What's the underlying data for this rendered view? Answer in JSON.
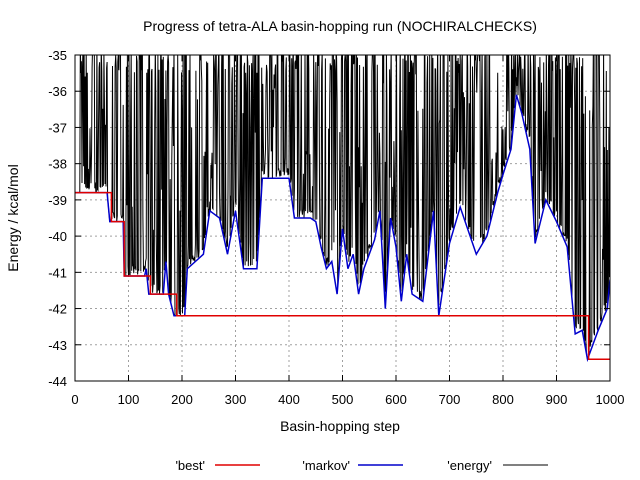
{
  "chart_data": {
    "type": "line",
    "title": "Progress of tetra-ALA basin-hopping run (NOCHIRALCHECKS)",
    "xlabel": "Basin-hopping step",
    "ylabel": "Energy / kcal/mol",
    "xlim": [
      0,
      1000
    ],
    "ylim": [
      -44,
      -35
    ],
    "x_ticks": [
      0,
      100,
      200,
      300,
      400,
      500,
      600,
      700,
      800,
      900,
      1000
    ],
    "y_ticks": [
      -44,
      -43,
      -42,
      -41,
      -40,
      -39,
      -38,
      -37,
      -36,
      -35
    ],
    "grid": true,
    "legend_placement": "bottom",
    "series": [
      {
        "name": "'best'",
        "color": "#e00000",
        "points": [
          [
            0,
            -38.8
          ],
          [
            62,
            -38.8
          ],
          [
            68,
            -39.6
          ],
          [
            90,
            -39.6
          ],
          [
            92,
            -41.1
          ],
          [
            138,
            -41.1
          ],
          [
            141,
            -41.6
          ],
          [
            180,
            -41.6
          ],
          [
            190,
            -42.2
          ],
          [
            930,
            -42.2
          ],
          [
            960,
            -43.4
          ],
          [
            1000,
            -43.4
          ]
        ]
      },
      {
        "name": "'markov'",
        "color": "#0000cc",
        "points": [
          [
            0,
            -38.8
          ],
          [
            60,
            -38.8
          ],
          [
            65,
            -39.6
          ],
          [
            90,
            -39.6
          ],
          [
            92,
            -41.1
          ],
          [
            130,
            -41.1
          ],
          [
            133,
            -40.9
          ],
          [
            138,
            -41.6
          ],
          [
            165,
            -41.6
          ],
          [
            170,
            -40.7
          ],
          [
            175,
            -41.6
          ],
          [
            185,
            -42.2
          ],
          [
            205,
            -42.2
          ],
          [
            210,
            -40.9
          ],
          [
            225,
            -40.7
          ],
          [
            240,
            -40.5
          ],
          [
            252,
            -39.3
          ],
          [
            270,
            -39.5
          ],
          [
            285,
            -40.5
          ],
          [
            300,
            -39.3
          ],
          [
            315,
            -40.9
          ],
          [
            340,
            -40.9
          ],
          [
            350,
            -38.4
          ],
          [
            375,
            -38.4
          ],
          [
            400,
            -38.4
          ],
          [
            410,
            -39.5
          ],
          [
            440,
            -39.5
          ],
          [
            450,
            -39.6
          ],
          [
            460,
            -40.3
          ],
          [
            470,
            -40.9
          ],
          [
            480,
            -40.7
          ],
          [
            490,
            -41.6
          ],
          [
            500,
            -39.8
          ],
          [
            510,
            -40.9
          ],
          [
            520,
            -40.5
          ],
          [
            530,
            -41.6
          ],
          [
            540,
            -40.9
          ],
          [
            560,
            -40.1
          ],
          [
            570,
            -39.3
          ],
          [
            580,
            -42.0
          ],
          [
            590,
            -39.5
          ],
          [
            600,
            -40.3
          ],
          [
            610,
            -41.8
          ],
          [
            620,
            -40.5
          ],
          [
            630,
            -41.6
          ],
          [
            650,
            -41.8
          ],
          [
            670,
            -39.3
          ],
          [
            680,
            -42.2
          ],
          [
            700,
            -40.2
          ],
          [
            720,
            -39.2
          ],
          [
            750,
            -40.5
          ],
          [
            770,
            -40.0
          ],
          [
            790,
            -38.8
          ],
          [
            800,
            -38.3
          ],
          [
            815,
            -37.6
          ],
          [
            825,
            -36.1
          ],
          [
            835,
            -36.6
          ],
          [
            850,
            -37.6
          ],
          [
            860,
            -40.2
          ],
          [
            880,
            -39.0
          ],
          [
            900,
            -39.6
          ],
          [
            920,
            -40.3
          ],
          [
            935,
            -42.7
          ],
          [
            948,
            -42.6
          ],
          [
            958,
            -43.4
          ],
          [
            978,
            -42.6
          ],
          [
            995,
            -42.0
          ],
          [
            1000,
            -41.2
          ]
        ]
      },
      {
        "name": "'energy'",
        "color": "#000000"
      }
    ]
  }
}
